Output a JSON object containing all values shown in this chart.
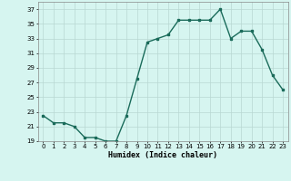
{
  "x": [
    0,
    1,
    2,
    3,
    4,
    5,
    6,
    7,
    8,
    9,
    10,
    11,
    12,
    13,
    14,
    15,
    16,
    17,
    18,
    19,
    20,
    21,
    22,
    23
  ],
  "y": [
    22.5,
    21.5,
    21.5,
    21.0,
    19.5,
    19.5,
    19.0,
    19.0,
    22.5,
    27.5,
    32.5,
    33.0,
    33.5,
    35.5,
    35.5,
    35.5,
    35.5,
    37.0,
    33.0,
    34.0,
    34.0,
    31.5,
    28.0,
    26.0
  ],
  "xlabel": "Humidex (Indice chaleur)",
  "ylim": [
    19,
    38
  ],
  "xlim": [
    -0.5,
    23.5
  ],
  "yticks": [
    19,
    21,
    23,
    25,
    27,
    29,
    31,
    33,
    35,
    37
  ],
  "xtick_labels": [
    "0",
    "1",
    "2",
    "3",
    "4",
    "5",
    "6",
    "7",
    "8",
    "9",
    "10",
    "11",
    "12",
    "13",
    "14",
    "15",
    "16",
    "17",
    "18",
    "19",
    "20",
    "21",
    "22",
    "23"
  ],
  "line_color": "#1a6b5a",
  "marker": "s",
  "markersize": 1.8,
  "bg_color": "#d6f5f0",
  "grid_color": "#b8d8d2",
  "linewidth": 1.0,
  "tick_fontsize": 5.0,
  "xlabel_fontsize": 6.0
}
